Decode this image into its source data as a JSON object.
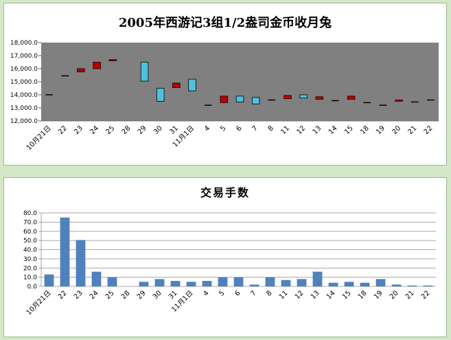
{
  "chart_data": [
    {
      "type": "candlestick",
      "title": "2005年西游记3组1/2盎司金币收月兔",
      "categories": [
        "10月21日",
        "22",
        "23",
        "24",
        "25",
        "28",
        "29",
        "30",
        "31",
        "11月1日",
        "4",
        "5",
        "6",
        "7",
        "8",
        "11",
        "12",
        "13",
        "14",
        "15",
        "18",
        "19",
        "20",
        "21",
        "22"
      ],
      "ylim": [
        12000,
        18000
      ],
      "yticks": [
        "12,000.0",
        "13,000.0",
        "14,000.0",
        "15,000.0",
        "16,000.0",
        "17,000.0",
        "18,000.0"
      ],
      "plot_background": "#808080",
      "up_color": "#c00000",
      "down_color": "#4bc3e0",
      "series": [
        {
          "open": 14000,
          "close": 14000
        },
        {
          "open": 15450,
          "close": 15450
        },
        {
          "open": 15750,
          "close": 16000
        },
        {
          "open": 16000,
          "close": 16500
        },
        {
          "open": 16600,
          "close": 16700
        },
        {
          "open": null,
          "close": null
        },
        {
          "open": 16500,
          "close": 15050
        },
        {
          "open": 14500,
          "close": 13500
        },
        {
          "open": 14550,
          "close": 14900
        },
        {
          "open": 15200,
          "close": 14300
        },
        {
          "open": 13200,
          "close": 13200
        },
        {
          "open": 13400,
          "close": 13900
        },
        {
          "open": 13900,
          "close": 13450
        },
        {
          "open": 13800,
          "close": 13300
        },
        {
          "open": 13600,
          "close": 13600
        },
        {
          "open": 13700,
          "close": 13950
        },
        {
          "open": 14000,
          "close": 13750
        },
        {
          "open": 13650,
          "close": 13850
        },
        {
          "open": 13550,
          "close": 13550
        },
        {
          "open": 13650,
          "close": 13900
        },
        {
          "open": 13400,
          "close": 13400
        },
        {
          "open": 13200,
          "close": 13200
        },
        {
          "open": 13500,
          "close": 13600
        },
        {
          "open": 13450,
          "close": 13450
        },
        {
          "open": 13600,
          "close": 13600
        }
      ]
    },
    {
      "type": "bar",
      "title": "交易手数",
      "categories": [
        "10月21日",
        "22",
        "23",
        "24",
        "25",
        "28",
        "29",
        "30",
        "31",
        "11月1日",
        "4",
        "5",
        "6",
        "7",
        "8",
        "11",
        "12",
        "13",
        "14",
        "15",
        "18",
        "19",
        "20",
        "21",
        "22"
      ],
      "values": [
        13,
        75,
        50.5,
        16,
        10,
        0,
        5,
        8,
        6,
        5,
        6,
        10,
        10,
        2,
        10,
        7,
        8,
        16,
        4,
        5,
        4,
        8,
        2,
        1,
        1
      ],
      "ylim": [
        0,
        80
      ],
      "yticks": [
        "0.0",
        "10.0",
        "20.0",
        "30.0",
        "40.0",
        "50.0",
        "60.0",
        "70.0",
        "80.0"
      ],
      "bar_color": "#4f81bd",
      "grid": true
    }
  ]
}
